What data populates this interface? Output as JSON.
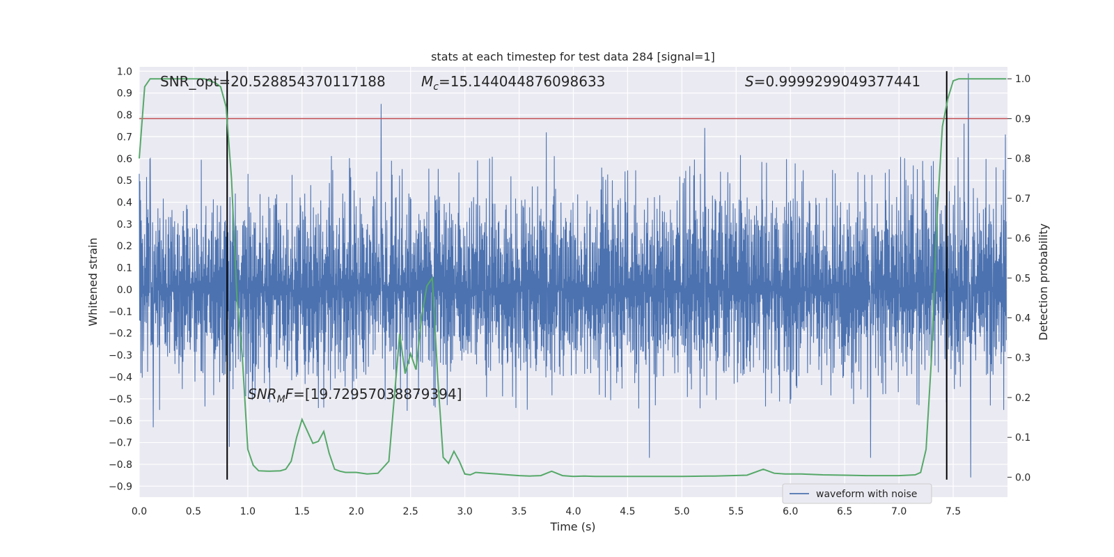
{
  "chart_data": {
    "type": "line",
    "title": "stats at each timestep for test data 284 [signal=1]",
    "xlabel": "Time (s)",
    "ylabel_left": "Whitened strain",
    "ylabel_right": "Detection probability",
    "xlim": [
      0.0,
      8.0
    ],
    "ylim_left": [
      -0.95,
      1.02
    ],
    "ylim_right": [
      -0.05,
      1.03
    ],
    "x_ticks": [
      "0.0",
      "0.5",
      "1.0",
      "1.5",
      "2.0",
      "2.5",
      "3.0",
      "3.5",
      "4.0",
      "4.5",
      "5.0",
      "5.5",
      "6.0",
      "6.5",
      "7.0",
      "7.5"
    ],
    "y_left_ticks": [
      "1.0",
      "0.9",
      "0.8",
      "0.7",
      "0.6",
      "0.5",
      "0.4",
      "0.3",
      "0.2",
      "0.1",
      "0.0",
      "−0.1",
      "−0.2",
      "−0.3",
      "−0.4",
      "−0.5",
      "−0.6",
      "−0.7",
      "−0.8",
      "−0.9"
    ],
    "y_right_ticks": [
      "1.0",
      "0.9",
      "0.8",
      "0.7",
      "0.6",
      "0.5",
      "0.4",
      "0.3",
      "0.2",
      "0.1",
      "0.0"
    ],
    "grid": true,
    "legend": {
      "placement": "lower-right",
      "entries": [
        "waveform with noise"
      ]
    },
    "annotations": {
      "snr_opt": "SNR_opt=20.528854370117188",
      "mc_symbol": "M",
      "mc_sub": "c",
      "mc_value": "=15.144044876098633",
      "s_symbol": "S",
      "s_value": "=0.9999299049377441",
      "snr_mf_symbol": "SNR",
      "snr_mf_sub": "M",
      "snr_mf_f": "F",
      "snr_mf_value": "=[19.72957038879394]"
    },
    "vertical_lines_x": [
      0.81,
      7.44
    ],
    "threshold_line": {
      "axis": "right",
      "value": 0.9,
      "color": "#c44e52"
    },
    "series": [
      {
        "name": "waveform with noise",
        "axis": "left",
        "color": "#4c72b0",
        "kind": "noise",
        "x_range": [
          0.0,
          7.99
        ],
        "typical_range": [
          -0.32,
          0.44
        ],
        "spikes": [
          {
            "x": 2.23,
            "y": 0.85
          },
          {
            "x": 7.64,
            "y": 0.99
          },
          {
            "x": 0.83,
            "y": -0.72
          },
          {
            "x": 7.66,
            "y": -0.86
          },
          {
            "x": 4.7,
            "y": -0.77
          },
          {
            "x": 6.74,
            "y": -0.77
          },
          {
            "x": 7.6,
            "y": 0.76
          },
          {
            "x": 3.75,
            "y": 0.72
          },
          {
            "x": 5.21,
            "y": 0.74
          },
          {
            "x": 7.98,
            "y": 0.71
          },
          {
            "x": 0.1,
            "y": 0.6
          },
          {
            "x": 0.13,
            "y": -0.63
          }
        ]
      },
      {
        "name": "detection probability",
        "axis": "right",
        "color": "#55a868",
        "x": [
          0.0,
          0.05,
          0.1,
          0.2,
          0.3,
          0.4,
          0.5,
          0.6,
          0.7,
          0.75,
          0.8,
          0.85,
          0.9,
          0.95,
          1.0,
          1.05,
          1.1,
          1.2,
          1.3,
          1.35,
          1.4,
          1.45,
          1.5,
          1.55,
          1.6,
          1.65,
          1.7,
          1.75,
          1.8,
          1.85,
          1.9,
          2.0,
          2.1,
          2.2,
          2.3,
          2.35,
          2.4,
          2.45,
          2.5,
          2.55,
          2.6,
          2.65,
          2.7,
          2.75,
          2.8,
          2.85,
          2.9,
          2.95,
          3.0,
          3.05,
          3.1,
          3.2,
          3.3,
          3.4,
          3.5,
          3.6,
          3.7,
          3.8,
          3.9,
          4.0,
          4.1,
          4.2,
          4.5,
          4.8,
          5.0,
          5.3,
          5.6,
          5.75,
          5.85,
          5.95,
          6.1,
          6.3,
          6.5,
          6.7,
          7.0,
          7.15,
          7.2,
          7.25,
          7.3,
          7.35,
          7.4,
          7.45,
          7.5,
          7.55,
          7.6,
          7.7,
          7.99
        ],
        "y": [
          0.8,
          0.98,
          1.0,
          1.0,
          1.0,
          1.0,
          1.0,
          1.0,
          0.99,
          0.98,
          0.93,
          0.75,
          0.45,
          0.3,
          0.07,
          0.03,
          0.016,
          0.015,
          0.016,
          0.02,
          0.04,
          0.1,
          0.145,
          0.115,
          0.085,
          0.09,
          0.115,
          0.06,
          0.02,
          0.015,
          0.012,
          0.012,
          0.008,
          0.01,
          0.04,
          0.2,
          0.36,
          0.26,
          0.31,
          0.27,
          0.4,
          0.48,
          0.5,
          0.25,
          0.05,
          0.035,
          0.065,
          0.04,
          0.008,
          0.006,
          0.012,
          0.01,
          0.008,
          0.006,
          0.004,
          0.003,
          0.004,
          0.015,
          0.004,
          0.002,
          0.003,
          0.002,
          0.002,
          0.002,
          0.002,
          0.003,
          0.005,
          0.02,
          0.01,
          0.008,
          0.008,
          0.006,
          0.005,
          0.004,
          0.004,
          0.006,
          0.012,
          0.07,
          0.3,
          0.65,
          0.88,
          0.95,
          0.995,
          1.0,
          1.0,
          1.0,
          1.0
        ]
      }
    ]
  }
}
